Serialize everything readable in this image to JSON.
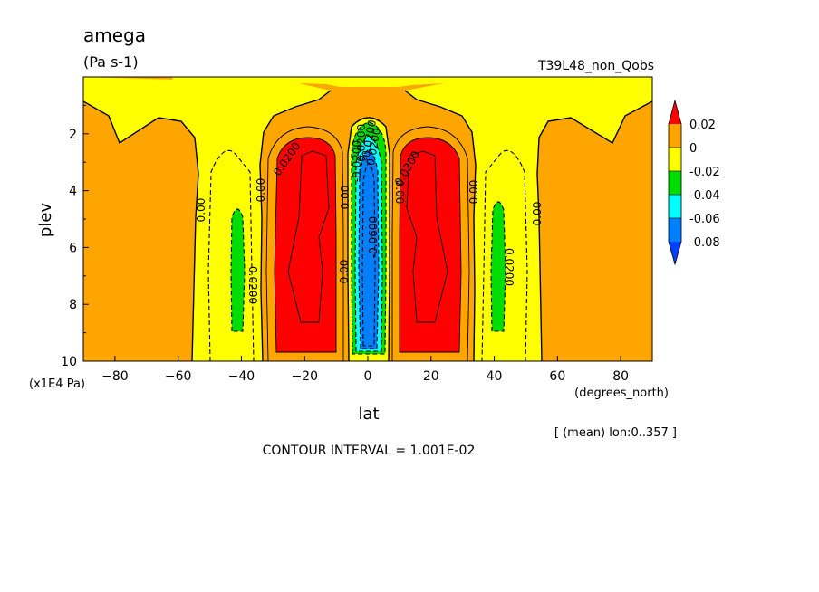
{
  "chart_data": {
    "type": "heatmap",
    "title": "amega",
    "units": "(Pa s-1)",
    "experiment": "T39L48_non_Qobs",
    "xlabel": "lat",
    "xunits": "(degrees_north)",
    "ylabel": "plev",
    "yunits": "(x1E4 Pa)",
    "xlim": [
      -90,
      90
    ],
    "ylim": [
      10,
      0
    ],
    "xticks": [
      "-80",
      "-60",
      "-40",
      "-20",
      "0",
      "20",
      "40",
      "60",
      "80"
    ],
    "yticks": [
      "2",
      "4",
      "6",
      "8",
      "10"
    ],
    "note": "[ (mean) lon:0..357 ]",
    "contour_interval": "CONTOUR INTERVAL = 1.001E-02",
    "colorbar": {
      "labels": [
        "0.02",
        "0",
        "-0.02",
        "-0.04",
        "-0.06",
        "-0.08"
      ],
      "levels": [
        {
          "min": 0.02,
          "color": "#ff0000"
        },
        {
          "min": 0.0,
          "max": 0.02,
          "color": "#ffa500"
        },
        {
          "min": -0.02,
          "max": 0.0,
          "color": "#ffff00"
        },
        {
          "min": -0.04,
          "max": -0.02,
          "color": "#00dd00"
        },
        {
          "min": -0.06,
          "max": -0.04,
          "color": "#00ffff"
        },
        {
          "min": -0.08,
          "max": -0.06,
          "color": "#0080ff"
        },
        {
          "max": -0.08,
          "color": "#0040ff"
        }
      ]
    },
    "field_features": [
      {
        "name": "equatorial ascent core",
        "lat_range": [
          -4,
          4
        ],
        "plev_range": [
          2.5,
          9.5
        ],
        "value": -0.085
      },
      {
        "name": "equatorial weak-ascent column",
        "lat_range": [
          -7,
          7
        ],
        "plev_range": [
          1.6,
          9.9
        ],
        "value": -0.03
      },
      {
        "name": "south subsidence maximum",
        "lat_range": [
          -30,
          -8
        ],
        "plev_range": [
          2.3,
          9.8
        ],
        "value": 0.025
      },
      {
        "name": "north subsidence maximum",
        "lat_range": [
          8,
          30
        ],
        "plev_range": [
          2.3,
          9.8
        ],
        "value": 0.025
      },
      {
        "name": "south midlatitude ascent",
        "lat_range": [
          -42,
          -38
        ],
        "plev_range": [
          4.5,
          9.0
        ],
        "value": -0.025
      },
      {
        "name": "north midlatitude ascent",
        "lat_range": [
          38,
          42
        ],
        "plev_range": [
          4.3,
          9.0
        ],
        "value": -0.025
      }
    ],
    "contour_labels": [
      "0.00",
      "0.00",
      "0.0200",
      "0.0200",
      "0.00",
      "0.00",
      "0.00",
      "-0.0200",
      "0.0200",
      "0.0200",
      "-0.0200",
      "0.00",
      "0.00",
      "-0.0200",
      "-0.0600",
      "-0.0200"
    ]
  },
  "colors": {
    "red": "#ff0000",
    "orange": "#ffa500",
    "yellow": "#ffff00",
    "green": "#00dd00",
    "cyan": "#00ffff",
    "blue": "#0080ff",
    "darkblue": "#0040ff"
  }
}
